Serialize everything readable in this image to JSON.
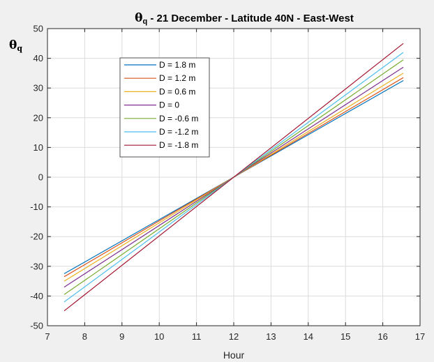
{
  "chart_data": {
    "type": "line",
    "title": {
      "symbol": "θ",
      "subscript": "q",
      "text": " - 21 December - Latitude 40N - East-West"
    },
    "xlabel": "Hour",
    "ylabel": {
      "symbol": "θ",
      "subscript": "q"
    },
    "xlim": [
      7,
      17
    ],
    "ylim": [
      -50,
      50
    ],
    "xticks": [
      7,
      8,
      9,
      10,
      11,
      12,
      13,
      14,
      15,
      16,
      17
    ],
    "yticks": [
      -50,
      -40,
      -30,
      -20,
      -10,
      0,
      10,
      20,
      30,
      40,
      50
    ],
    "grid": true,
    "legend_position": "top-left inside",
    "x": [
      7.45,
      12.0,
      16.55
    ],
    "series": [
      {
        "name": "D = 1.8 m",
        "color": "#0072BD",
        "values": [
          -32.5,
          0,
          32.5
        ]
      },
      {
        "name": "D = 1.2 m",
        "color": "#D95319",
        "values": [
          -33.5,
          0,
          33.5
        ]
      },
      {
        "name": "D = 0.6 m",
        "color": "#EDB120",
        "values": [
          -35.0,
          0,
          35.0
        ]
      },
      {
        "name": "D = 0",
        "color": "#7E2F8E",
        "values": [
          -37.0,
          0,
          37.0
        ]
      },
      {
        "name": "D = -0.6 m",
        "color": "#77AC30",
        "values": [
          -39.5,
          0,
          39.5
        ]
      },
      {
        "name": "D = -1.2 m",
        "color": "#4DBEEE",
        "values": [
          -42.0,
          0,
          42.0
        ]
      },
      {
        "name": "D = -1.8 m",
        "color": "#A2142F",
        "values": [
          -45.0,
          0,
          45.0
        ]
      }
    ]
  }
}
